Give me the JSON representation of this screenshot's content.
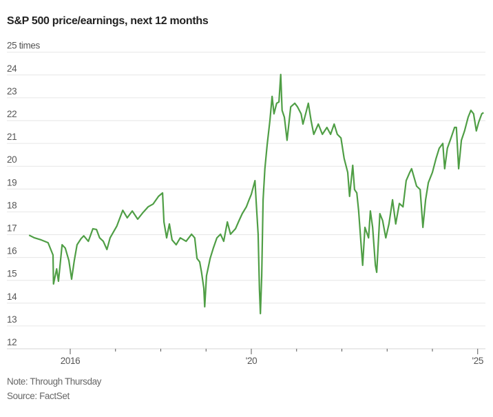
{
  "chart_data": {
    "type": "line",
    "title": "S&P 500 price/earnings, next 12 months",
    "ylabel": "",
    "xlabel": "",
    "ylim": [
      12,
      25
    ],
    "yticks": [
      12,
      13,
      14,
      15,
      16,
      17,
      18,
      19,
      20,
      21,
      22,
      23,
      24,
      25
    ],
    "ytick_labels": [
      "12",
      "13",
      "14",
      "15",
      "16",
      "17",
      "18",
      "19",
      "20",
      "21",
      "22",
      "23",
      "24",
      "25 times"
    ],
    "xlim": [
      2015.05,
      2025.15
    ],
    "xticks": [
      2016,
      2017,
      2018,
      2019,
      2020,
      2021,
      2022,
      2023,
      2024,
      2025
    ],
    "xtick_labels": {
      "2016": "2016",
      "2020": "'20",
      "2025": "'25"
    },
    "grid": "horizontal",
    "line_color": "#4f9e45",
    "series": [
      {
        "points": [
          [
            2015.09,
            16.98
          ],
          [
            2015.21,
            16.86
          ],
          [
            2015.36,
            16.77
          ],
          [
            2015.51,
            16.65
          ],
          [
            2015.62,
            16.11
          ],
          [
            2015.63,
            14.84
          ],
          [
            2015.7,
            15.5
          ],
          [
            2015.74,
            14.96
          ],
          [
            2015.82,
            16.56
          ],
          [
            2015.89,
            16.41
          ],
          [
            2015.97,
            15.87
          ],
          [
            2016.03,
            15.05
          ],
          [
            2016.09,
            15.87
          ],
          [
            2016.15,
            16.56
          ],
          [
            2016.24,
            16.83
          ],
          [
            2016.3,
            16.95
          ],
          [
            2016.4,
            16.71
          ],
          [
            2016.5,
            17.26
          ],
          [
            2016.58,
            17.23
          ],
          [
            2016.65,
            16.86
          ],
          [
            2016.73,
            16.71
          ],
          [
            2016.81,
            16.35
          ],
          [
            2016.88,
            16.86
          ],
          [
            2017.03,
            17.38
          ],
          [
            2017.16,
            18.07
          ],
          [
            2017.26,
            17.74
          ],
          [
            2017.37,
            18.04
          ],
          [
            2017.49,
            17.68
          ],
          [
            2017.61,
            17.98
          ],
          [
            2017.72,
            18.22
          ],
          [
            2017.83,
            18.34
          ],
          [
            2017.95,
            18.68
          ],
          [
            2018.04,
            18.83
          ],
          [
            2018.07,
            17.56
          ],
          [
            2018.13,
            16.86
          ],
          [
            2018.19,
            17.47
          ],
          [
            2018.25,
            16.77
          ],
          [
            2018.34,
            16.56
          ],
          [
            2018.43,
            16.86
          ],
          [
            2018.56,
            16.71
          ],
          [
            2018.68,
            17.02
          ],
          [
            2018.75,
            16.86
          ],
          [
            2018.8,
            15.96
          ],
          [
            2018.86,
            15.81
          ],
          [
            2018.9,
            15.35
          ],
          [
            2018.95,
            14.66
          ],
          [
            2018.97,
            13.84
          ],
          [
            2019.01,
            15.2
          ],
          [
            2019.09,
            15.96
          ],
          [
            2019.16,
            16.41
          ],
          [
            2019.24,
            16.86
          ],
          [
            2019.32,
            17.02
          ],
          [
            2019.39,
            16.71
          ],
          [
            2019.47,
            17.56
          ],
          [
            2019.54,
            17.02
          ],
          [
            2019.65,
            17.26
          ],
          [
            2019.73,
            17.62
          ],
          [
            2019.8,
            17.92
          ],
          [
            2019.89,
            18.22
          ],
          [
            2019.95,
            18.53
          ],
          [
            2020.0,
            18.77
          ],
          [
            2020.08,
            19.37
          ],
          [
            2020.11,
            18.37
          ],
          [
            2020.15,
            17.02
          ],
          [
            2020.18,
            14.6
          ],
          [
            2020.2,
            13.54
          ],
          [
            2020.23,
            15.2
          ],
          [
            2020.26,
            18.53
          ],
          [
            2020.3,
            19.89
          ],
          [
            2020.35,
            20.94
          ],
          [
            2020.41,
            22.0
          ],
          [
            2020.46,
            23.06
          ],
          [
            2020.5,
            22.3
          ],
          [
            2020.56,
            22.76
          ],
          [
            2020.61,
            22.82
          ],
          [
            2020.65,
            24.02
          ],
          [
            2020.68,
            22.45
          ],
          [
            2020.73,
            22.15
          ],
          [
            2020.79,
            21.14
          ],
          [
            2020.87,
            22.6
          ],
          [
            2020.96,
            22.76
          ],
          [
            2021.02,
            22.6
          ],
          [
            2021.1,
            22.3
          ],
          [
            2021.14,
            21.85
          ],
          [
            2021.22,
            22.45
          ],
          [
            2021.26,
            22.76
          ],
          [
            2021.32,
            22.0
          ],
          [
            2021.38,
            21.4
          ],
          [
            2021.48,
            21.85
          ],
          [
            2021.57,
            21.4
          ],
          [
            2021.67,
            21.7
          ],
          [
            2021.75,
            21.4
          ],
          [
            2021.83,
            21.85
          ],
          [
            2021.9,
            21.4
          ],
          [
            2021.98,
            21.24
          ],
          [
            2022.05,
            20.34
          ],
          [
            2022.13,
            19.73
          ],
          [
            2022.17,
            18.68
          ],
          [
            2022.24,
            20.04
          ],
          [
            2022.28,
            18.98
          ],
          [
            2022.33,
            18.83
          ],
          [
            2022.37,
            18.07
          ],
          [
            2022.43,
            16.41
          ],
          [
            2022.46,
            15.66
          ],
          [
            2022.51,
            17.32
          ],
          [
            2022.59,
            16.86
          ],
          [
            2022.63,
            18.04
          ],
          [
            2022.68,
            17.32
          ],
          [
            2022.74,
            15.66
          ],
          [
            2022.77,
            15.35
          ],
          [
            2022.84,
            17.92
          ],
          [
            2022.9,
            17.62
          ],
          [
            2022.97,
            16.86
          ],
          [
            2023.04,
            17.47
          ],
          [
            2023.12,
            18.53
          ],
          [
            2023.19,
            17.47
          ],
          [
            2023.27,
            18.37
          ],
          [
            2023.35,
            18.22
          ],
          [
            2023.42,
            19.37
          ],
          [
            2023.5,
            19.73
          ],
          [
            2023.54,
            19.89
          ],
          [
            2023.65,
            19.13
          ],
          [
            2023.73,
            18.98
          ],
          [
            2023.79,
            17.32
          ],
          [
            2023.85,
            18.53
          ],
          [
            2023.91,
            19.28
          ],
          [
            2024.0,
            19.73
          ],
          [
            2024.08,
            20.34
          ],
          [
            2024.15,
            20.79
          ],
          [
            2024.23,
            21.0
          ],
          [
            2024.27,
            19.89
          ],
          [
            2024.33,
            20.79
          ],
          [
            2024.41,
            21.24
          ],
          [
            2024.49,
            21.7
          ],
          [
            2024.53,
            21.7
          ],
          [
            2024.58,
            19.89
          ],
          [
            2024.64,
            21.14
          ],
          [
            2024.71,
            21.55
          ],
          [
            2024.79,
            22.15
          ],
          [
            2024.85,
            22.45
          ],
          [
            2024.91,
            22.3
          ],
          [
            2024.97,
            21.55
          ],
          [
            2025.02,
            21.92
          ],
          [
            2025.09,
            22.3
          ],
          [
            2025.13,
            22.35
          ]
        ]
      }
    ],
    "note": "Note: Through Thursday",
    "source": "Source: FactSet"
  }
}
